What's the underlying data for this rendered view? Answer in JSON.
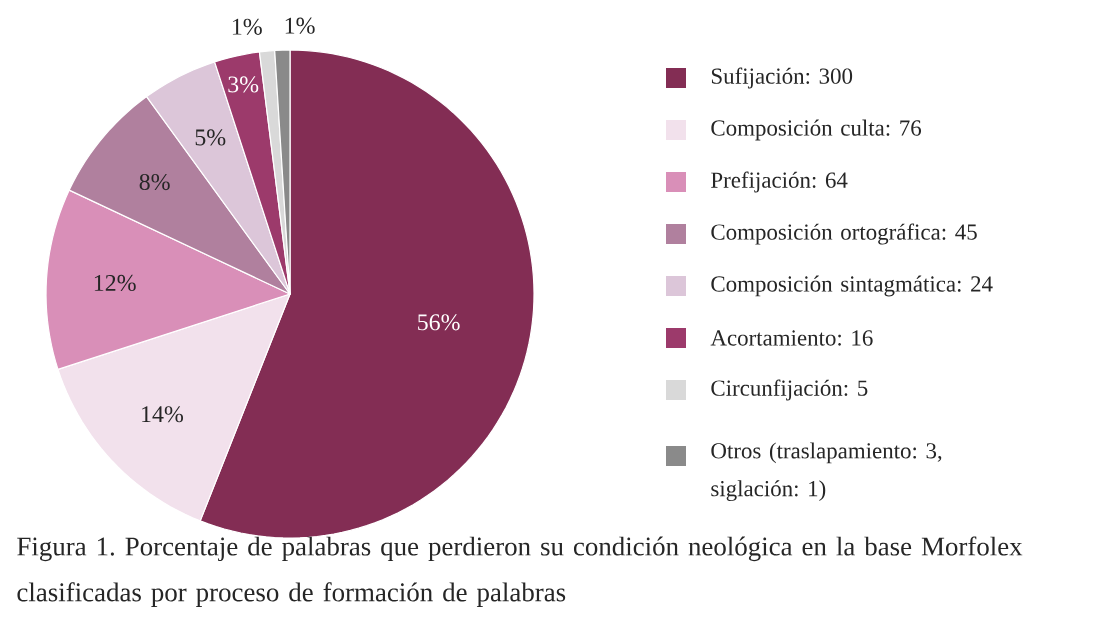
{
  "chart_data": {
    "type": "pie",
    "title": "Figura 1. Porcentaje de palabras que perdieron su condición neológica en la base Morfolex clasificadas por proceso de formación de palabras",
    "categories": [
      "Sufijación: 300",
      "Composición culta: 76",
      "Prefijación: 64",
      "Composición ortográfica: 45",
      "Composición sintagmática: 24",
      "Acortamiento: 16",
      "Circunfijación: 5",
      "Otros (traslapamiento: 3, siglación: 1)"
    ],
    "values": [
      56,
      14,
      12,
      8,
      5,
      3,
      1,
      1
    ],
    "value_labels": [
      "56%",
      "14%",
      "12%",
      "8%",
      "5%",
      "3%",
      "1%",
      "1%"
    ],
    "colors": [
      "#832d54",
      "#f2e1ec",
      "#d98fb8",
      "#b0809e",
      "#dcc6d9",
      "#9c3a6b",
      "#d9d9d9",
      "#8a8a8a"
    ],
    "legend": "right"
  }
}
